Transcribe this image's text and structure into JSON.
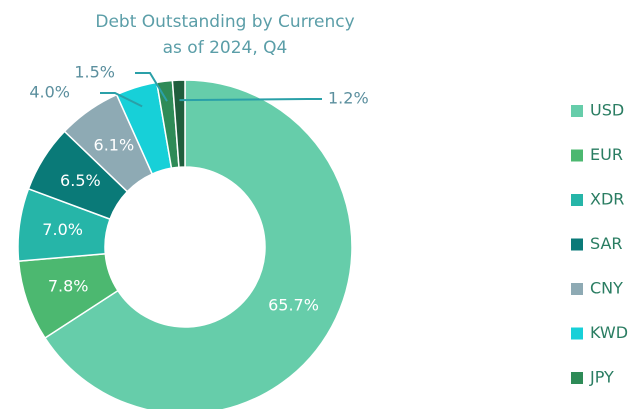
{
  "chart_data": {
    "type": "donut",
    "title": "Debt Outstanding by Currency",
    "subtitle": "as of 2024, Q4",
    "categories": [
      "USD",
      "EUR",
      "XDR",
      "SAR",
      "CNY",
      "KWD",
      "JPY",
      null
    ],
    "values": [
      65.7,
      7.8,
      7.0,
      6.5,
      6.1,
      4.0,
      1.5,
      1.2
    ],
    "value_labels": [
      "65.7%",
      "7.8%",
      "7.0%",
      "6.5%",
      "6.1%",
      "4.0%",
      "1.5%",
      "1.2%"
    ],
    "colors": [
      "#66cdaa",
      "#4cb870",
      "#26b5a8",
      "#0a7a78",
      "#8eaab4",
      "#17d0d8",
      "#2e8b57",
      "#1f5e3d"
    ],
    "legend": "right"
  }
}
